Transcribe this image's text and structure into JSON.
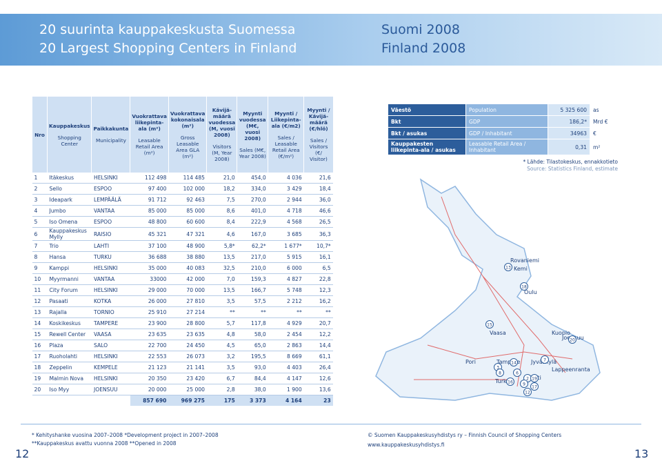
{
  "header": {
    "title_fi": "20 suurinta kauppakeskusta Suomessa",
    "title_en": "20 Largest Shopping Centers in Finland",
    "edition_fi": "Suomi 2008",
    "edition_en": "Finland 2008"
  },
  "table": {
    "headers": [
      {
        "fi": "Nro"
      },
      {
        "fi": "Kauppakeskus",
        "en": "Shopping Center"
      },
      {
        "fi": "Paikkakunta",
        "en": "Municipality"
      },
      {
        "fi": "Vuokrattava liikepinta-ala (m²)",
        "en": "Leasable Retail Area (m²)"
      },
      {
        "fi": "Vuokrattava kokonaisala (m²)",
        "en": "Gross Leasable Area GLA (m²)"
      },
      {
        "fi": "Kävijä-määrä vuodessa (M, vuosi 2008)",
        "en": "Visitors (M, Year 2008)"
      },
      {
        "fi": "Myynti vuodessa (M€, vuosi 2008)",
        "en": "Sales (M€, Year 2008)"
      },
      {
        "fi": "Myynti / Liikepinta-ala (€/m2)",
        "en": "Sales / Leasable Retail Area (€/m²)"
      },
      {
        "fi": "Myynti / Kävijä-määrä (€/hlö)",
        "en": "Sales / Visitors (€/ Visitor)"
      }
    ],
    "rows": [
      [
        "1",
        "Itäkeskus",
        "HELSINKI",
        "112 498",
        "114 485",
        "21,0",
        "454,0",
        "4 036",
        "21,6"
      ],
      [
        "2",
        "Sello",
        "ESPOO",
        "97 400",
        "102 000",
        "18,2",
        "334,0",
        "3 429",
        "18,4"
      ],
      [
        "3",
        "Ideapark",
        "LEMPÄÄLÄ",
        "91 712",
        "92 463",
        "7,5",
        "270,0",
        "2 944",
        "36,0"
      ],
      [
        "4",
        "Jumbo",
        "VANTAA",
        "85 000",
        "85 000",
        "8,6",
        "401,0",
        "4 718",
        "46,6"
      ],
      [
        "5",
        "Iso Omena",
        "ESPOO",
        "48 800",
        "60 600",
        "8,4",
        "222,9",
        "4 568",
        "26,5"
      ],
      [
        "6",
        "Kauppakeskus Mylly",
        "RAISIO",
        "45 321",
        "47 321",
        "4,6",
        "167,0",
        "3 685",
        "36,3"
      ],
      [
        "7",
        "Trio",
        "LAHTI",
        "37 100",
        "48 900",
        "5,8*",
        "62,2*",
        "1 677*",
        "10,7*"
      ],
      [
        "8",
        "Hansa",
        "TURKU",
        "36 688",
        "38 880",
        "13,5",
        "217,0",
        "5 915",
        "16,1"
      ],
      [
        "9",
        "Kamppi",
        "HELSINKI",
        "35 000",
        "40 083",
        "32,5",
        "210,0",
        "6 000",
        "6,5"
      ],
      [
        "10",
        "Myyrmanni",
        "VANTAA",
        "33000",
        "42 000",
        "7,0",
        "159,3",
        "4 827",
        "22,8"
      ],
      [
        "11",
        "City Forum",
        "HELSINKI",
        "29 000",
        "70 000",
        "13,5",
        "166,7",
        "5 748",
        "12,3"
      ],
      [
        "12",
        "Pasaati",
        "KOTKA",
        "26 000",
        "27 810",
        "3,5",
        "57,5",
        "2 212",
        "16,2"
      ],
      [
        "13",
        "Rajalla",
        "TORNIO",
        "25 910",
        "27 214",
        "**",
        "**",
        "**",
        "**"
      ],
      [
        "14",
        "Koskikeskus",
        "TAMPERE",
        "23 900",
        "28 800",
        "5,7",
        "117,8",
        "4 929",
        "20,7"
      ],
      [
        "15",
        "Rewell Center",
        "VAASA",
        "23 635",
        "23 635",
        "4,8",
        "58,0",
        "2 454",
        "12,2"
      ],
      [
        "16",
        "Plaza",
        "SALO",
        "22 700",
        "24 450",
        "4,5",
        "65,0",
        "2 863",
        "14,4"
      ],
      [
        "17",
        "Ruoholahti",
        "HELSINKI",
        "22 553",
        "26 073",
        "3,2",
        "195,5",
        "8 669",
        "61,1"
      ],
      [
        "18",
        "Zeppelin",
        "KEMPELE",
        "21 123",
        "21 141",
        "3,5",
        "93,0",
        "4 403",
        "26,4"
      ],
      [
        "19",
        "Malmin Nova",
        "HELSINKI",
        "20 350",
        "23 420",
        "6,7",
        "84,4",
        "4 147",
        "12,6"
      ],
      [
        "20",
        "Iso Myy",
        "JOENSUU",
        "20 000",
        "25 000",
        "2,8",
        "38,0",
        "1 900",
        "13,6"
      ]
    ],
    "totals": [
      "857 690",
      "969 275",
      "175",
      "3 373",
      "4 164",
      "23"
    ]
  },
  "info": {
    "rows": [
      [
        "Väestö",
        "Population",
        "5 325 600",
        "as"
      ],
      [
        "Bkt",
        "GDP",
        "186,2*",
        "Mrd €"
      ],
      [
        "Bkt / asukas",
        "GDP / Inhabitant",
        "34963",
        "€"
      ],
      [
        "Kauppakesten liikepinta-ala / asukas",
        "Leasable Retail Area / Inhabitant",
        "0,31",
        "m²"
      ]
    ],
    "note_fi": "* Lähde: Tilastokeskus, ennakkotieto",
    "note_en": "Source: Statistics Finland, estimate"
  },
  "map": {
    "cities": [
      "Rovaniemi",
      "Kemi",
      "Oulu",
      "Vaasa",
      "Jyväskylä",
      "Kuopio",
      "Joensuu",
      "Pori",
      "Tampere",
      "Turku",
      "Lahti",
      "Lappeenranta"
    ],
    "markers": [
      "13",
      "18",
      "15",
      "20",
      "3",
      "14",
      "7",
      "8",
      "6",
      "16",
      "2",
      "19",
      "9",
      "17",
      "12"
    ]
  },
  "footer": {
    "note1": "* Kehityshanke vuosina 2007–2008   *Development project in 2007–2008",
    "note2": "**Kauppakeskus avattu vuonna 2008   **Opened in 2008",
    "copyright": "© Suomen Kauppakeskusyhdistys ry – Finnish Council of Shopping Centers",
    "url": "www.kauppakeskusyhdistys.fi",
    "page_left": "12",
    "page_right": "13"
  }
}
